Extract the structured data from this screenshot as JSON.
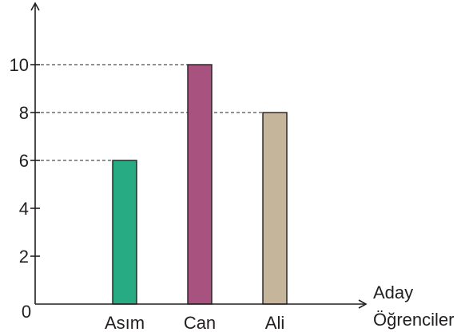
{
  "chart_data": {
    "type": "bar",
    "categories": [
      "Asım",
      "Can",
      "Ali"
    ],
    "values": [
      6,
      10,
      8
    ],
    "colors": [
      "#27ab82",
      "#a8527f",
      "#c5b59a"
    ],
    "yticks": [
      2,
      4,
      6,
      8,
      10
    ],
    "origin_label": "0",
    "ylim": [
      0,
      12
    ],
    "xlabel_lines": [
      "Aday",
      "Öğrenciler"
    ],
    "ylabel": "",
    "title": "",
    "guide_lines": "dashed lines from y-axis to bar tops",
    "legend": "none",
    "grid": false
  }
}
